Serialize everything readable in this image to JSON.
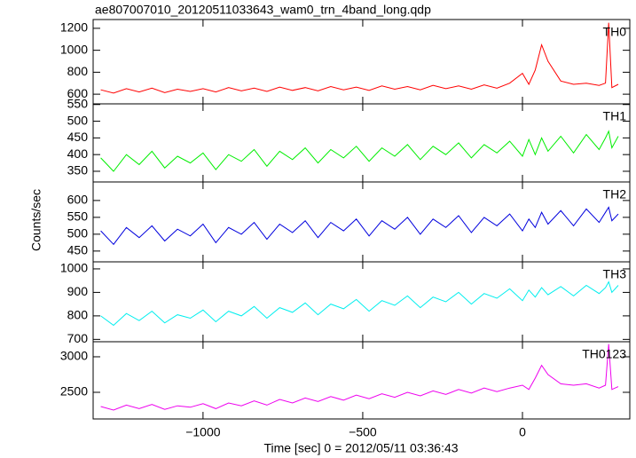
{
  "chart_data": {
    "type": "line",
    "title": "ae807007010_20120511033643_wam0_trn_4band_long.qdp",
    "xlabel": "Time [sec] 0 = 2012/05/11 03:36:43",
    "ylabel": "Counts/sec",
    "xlim": [
      -1344,
      336
    ],
    "xticks": [
      {
        "value": -1000,
        "label": "−1000"
      },
      {
        "value": -500,
        "label": "−500"
      },
      0
    ],
    "x": [
      -1320,
      -1280,
      -1240,
      -1200,
      -1160,
      -1120,
      -1080,
      -1040,
      -1000,
      -960,
      -920,
      -880,
      -840,
      -800,
      -760,
      -720,
      -680,
      -640,
      -600,
      -560,
      -520,
      -480,
      -440,
      -400,
      -360,
      -320,
      -280,
      -240,
      -200,
      -160,
      -120,
      -80,
      -40,
      0,
      20,
      40,
      60,
      80,
      120,
      160,
      200,
      240,
      260,
      270,
      280,
      300
    ],
    "panels": [
      {
        "name": "TH0",
        "color": "#ff0000",
        "ylim": [
          512,
          1280
        ],
        "yticks": [
          600,
          800,
          1000,
          1200
        ],
        "values": [
          640,
          610,
          650,
          620,
          655,
          615,
          645,
          625,
          650,
          620,
          660,
          630,
          655,
          625,
          665,
          635,
          660,
          630,
          670,
          640,
          665,
          635,
          675,
          645,
          670,
          640,
          680,
          650,
          675,
          645,
          685,
          655,
          700,
          790,
          690,
          820,
          1050,
          900,
          720,
          690,
          700,
          680,
          700,
          1250,
          660,
          690
        ]
      },
      {
        "name": "TH1",
        "color": "#00ee00",
        "ylim": [
          318,
          552
        ],
        "yticks": [
          350,
          400,
          450,
          500,
          550
        ],
        "values": [
          390,
          350,
          400,
          370,
          410,
          360,
          395,
          375,
          405,
          355,
          400,
          380,
          415,
          365,
          410,
          385,
          420,
          375,
          415,
          390,
          425,
          380,
          420,
          395,
          430,
          385,
          425,
          400,
          435,
          390,
          430,
          405,
          440,
          395,
          445,
          400,
          450,
          410,
          455,
          405,
          460,
          415,
          450,
          470,
          420,
          455
        ]
      },
      {
        "name": "TH2",
        "color": "#0000dd",
        "ylim": [
          418,
          655
        ],
        "yticks": [
          450,
          500,
          550,
          600
        ],
        "values": [
          510,
          470,
          520,
          490,
          525,
          480,
          515,
          495,
          530,
          475,
          520,
          500,
          535,
          485,
          530,
          505,
          540,
          490,
          535,
          510,
          545,
          495,
          540,
          515,
          550,
          500,
          545,
          520,
          555,
          505,
          550,
          525,
          560,
          510,
          545,
          520,
          565,
          530,
          570,
          525,
          575,
          535,
          565,
          580,
          540,
          560
        ]
      },
      {
        "name": "TH3",
        "color": "#00eeee",
        "ylim": [
          690,
          1030
        ],
        "yticks": [
          700,
          800,
          900,
          1000
        ],
        "values": [
          800,
          760,
          810,
          780,
          820,
          770,
          805,
          790,
          825,
          775,
          820,
          800,
          840,
          790,
          835,
          815,
          855,
          805,
          850,
          830,
          870,
          820,
          865,
          845,
          885,
          835,
          880,
          860,
          900,
          850,
          895,
          875,
          915,
          865,
          910,
          880,
          920,
          890,
          925,
          885,
          930,
          895,
          920,
          945,
          900,
          930
        ]
      },
      {
        "name": "TH0123",
        "color": "#ee00ee",
        "ylim": [
          2125,
          3212
        ],
        "yticks": [
          2500,
          3000
        ],
        "values": [
          2300,
          2250,
          2320,
          2270,
          2330,
          2260,
          2310,
          2290,
          2340,
          2270,
          2350,
          2310,
          2380,
          2320,
          2400,
          2350,
          2420,
          2370,
          2440,
          2390,
          2460,
          2410,
          2480,
          2430,
          2500,
          2450,
          2520,
          2470,
          2540,
          2490,
          2560,
          2510,
          2560,
          2600,
          2540,
          2700,
          2880,
          2750,
          2620,
          2600,
          2620,
          2560,
          2600,
          3180,
          2540,
          2580
        ]
      }
    ]
  }
}
